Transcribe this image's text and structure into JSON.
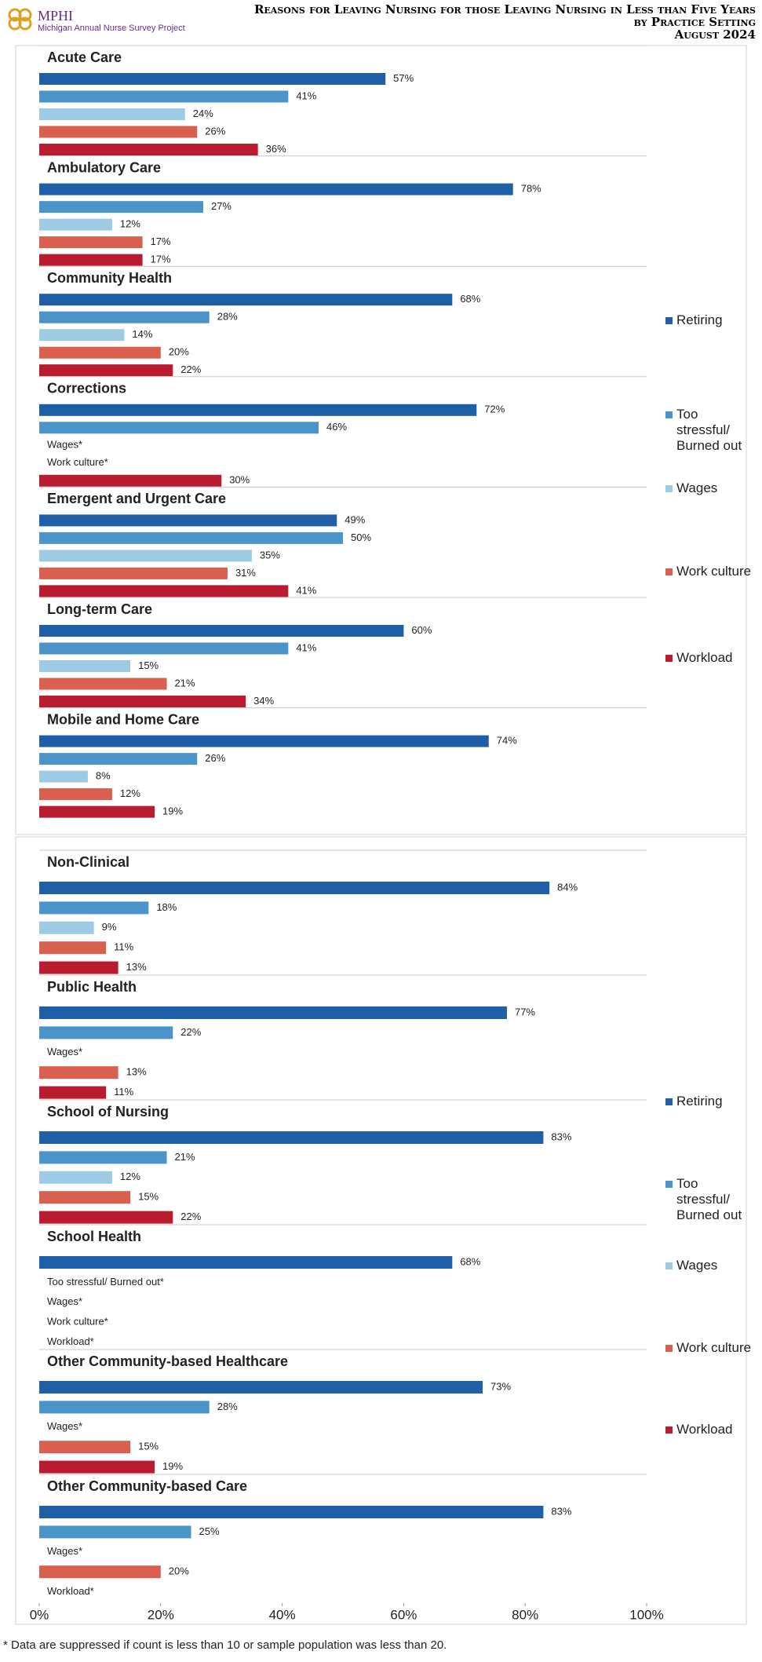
{
  "header": {
    "logo": "MPHI",
    "project": "Michigan Annual Nurse Survey Project",
    "title": "Reasons for Leaving Nursing for those Leaving Nursing in Less than Five Years",
    "subtitle": "by Practice Setting",
    "date": "August 2024"
  },
  "chart_data": [
    {
      "type": "bar",
      "orientation": "horizontal",
      "xlim": [
        0,
        100
      ],
      "categories": [
        "Acute Care",
        "Ambulatory Care",
        "Community Health",
        "Corrections",
        "Emergent and Urgent Care",
        "Long-term Care",
        "Mobile and Home Care"
      ],
      "series": [
        {
          "name": "Retiring",
          "color": "#1f5fa8",
          "values": [
            57,
            78,
            68,
            72,
            49,
            60,
            74
          ],
          "value_labels": [
            "57%",
            "78%",
            "68%",
            "72%",
            "49%",
            "60%",
            "74%"
          ]
        },
        {
          "name": "Too stressful/ Burned out",
          "color": "#4a94c9",
          "values": [
            41,
            27,
            28,
            46,
            50,
            41,
            26
          ],
          "value_labels": [
            "41%",
            "27%",
            "28%",
            "46%",
            "50%",
            "41%",
            "26%"
          ]
        },
        {
          "name": "Wages",
          "color": "#9dcbe3",
          "values": [
            24,
            12,
            14,
            null,
            35,
            15,
            8
          ],
          "value_labels": [
            "24%",
            "12%",
            "14%",
            "Wages*",
            "35%",
            "15%",
            "8%"
          ]
        },
        {
          "name": "Work culture",
          "color": "#d9604f",
          "values": [
            26,
            17,
            20,
            null,
            31,
            21,
            12
          ],
          "value_labels": [
            "26%",
            "17%",
            "20%",
            "Work culture*",
            "31%",
            "21%",
            "12%"
          ]
        },
        {
          "name": "Workload",
          "color": "#b81c2e",
          "values": [
            36,
            17,
            22,
            30,
            41,
            34,
            19
          ],
          "value_labels": [
            "36%",
            "17%",
            "22%",
            "30%",
            "41%",
            "34%",
            "19%"
          ]
        }
      ]
    },
    {
      "type": "bar",
      "orientation": "horizontal",
      "xlim": [
        0,
        100
      ],
      "xticks": [
        {
          "value": 0,
          "label": "0%"
        },
        {
          "value": 20,
          "label": "20%"
        },
        {
          "value": 40,
          "label": "40%"
        },
        {
          "value": 60,
          "label": "60%"
        },
        {
          "value": 80,
          "label": "80%"
        },
        {
          "value": 100,
          "label": "100%"
        }
      ],
      "categories": [
        "Non-Clinical",
        "Public Health",
        "School of Nursing",
        "School Health",
        "Other Community-based Healthcare",
        "Other Community-based Care"
      ],
      "series": [
        {
          "name": "Retiring",
          "color": "#1f5fa8",
          "values": [
            84,
            77,
            83,
            68,
            73,
            83
          ],
          "value_labels": [
            "84%",
            "77%",
            "83%",
            "68%",
            "73%",
            "83%"
          ]
        },
        {
          "name": "Too stressful/ Burned out",
          "color": "#4a94c9",
          "values": [
            18,
            22,
            21,
            null,
            28,
            25
          ],
          "value_labels": [
            "18%",
            "22%",
            "21%",
            "Too stressful/ Burned out*",
            "28%",
            "25%"
          ]
        },
        {
          "name": "Wages",
          "color": "#9dcbe3",
          "values": [
            9,
            null,
            12,
            null,
            null,
            null
          ],
          "value_labels": [
            "9%",
            "Wages*",
            "12%",
            "Wages*",
            "Wages*",
            "Wages*"
          ]
        },
        {
          "name": "Work culture",
          "color": "#d9604f",
          "values": [
            11,
            13,
            15,
            null,
            15,
            20
          ],
          "value_labels": [
            "11%",
            "13%",
            "15%",
            "Work culture*",
            "15%",
            "20%"
          ]
        },
        {
          "name": "Workload",
          "color": "#b81c2e",
          "values": [
            13,
            11,
            22,
            null,
            19,
            null
          ],
          "value_labels": [
            "13%",
            "11%",
            "22%",
            "Workload*",
            "19%",
            "Workload*"
          ]
        }
      ]
    }
  ],
  "footnote": "* Data are suppressed if count is less than 10 or sample population was less than 20."
}
